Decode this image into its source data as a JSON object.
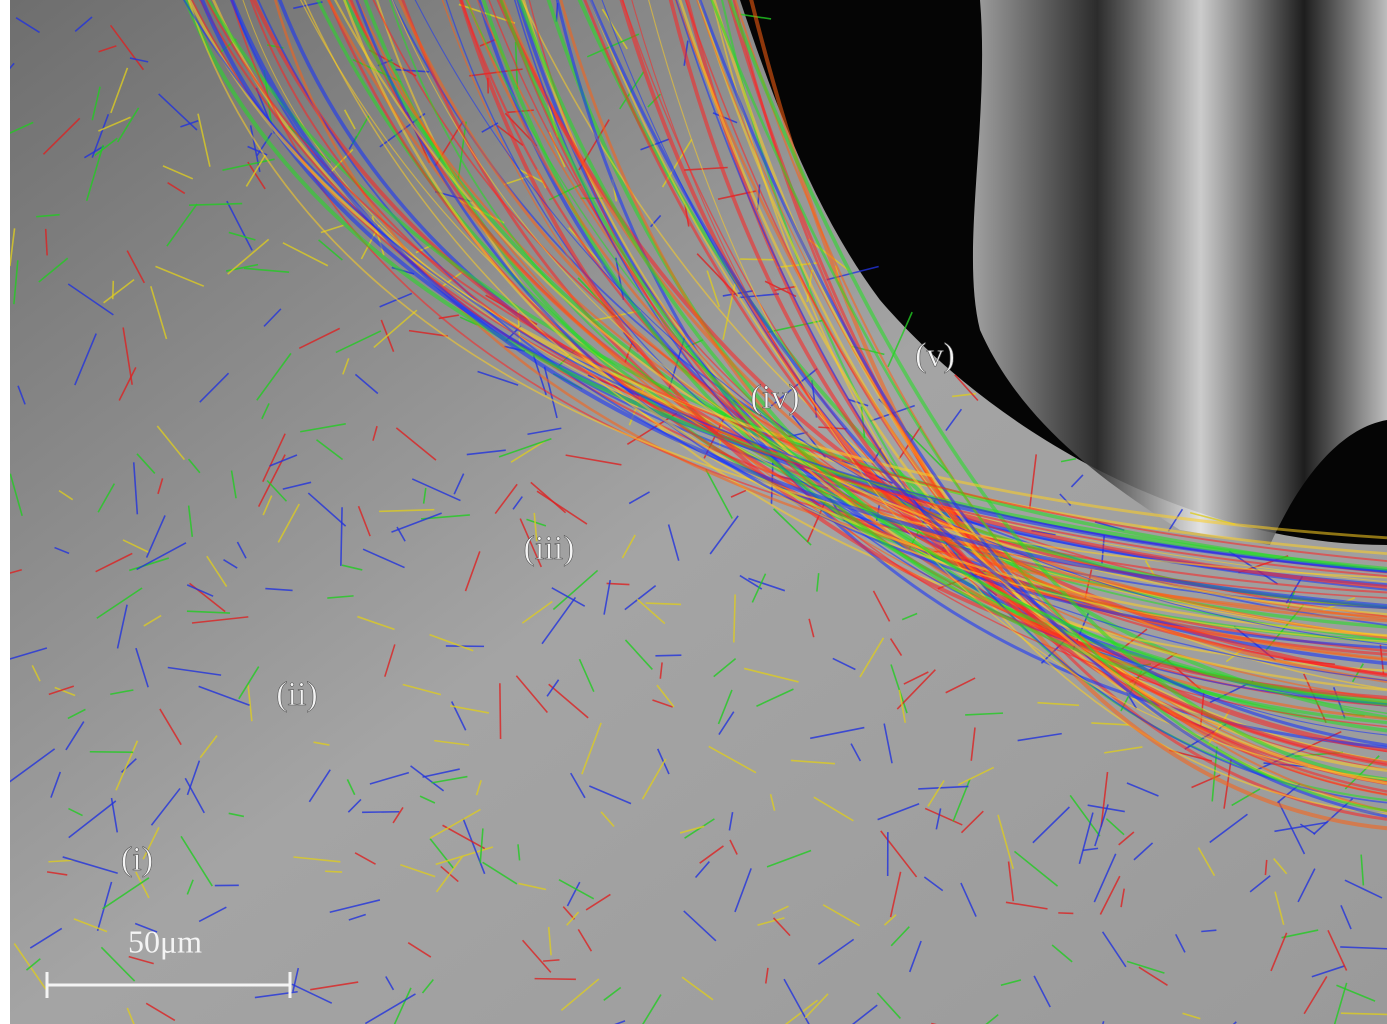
{
  "labels": [
    "(i)",
    "(ii)",
    "(iii)",
    "(iv)",
    "(v)"
  ],
  "scale_bar": {
    "label": "50μm"
  }
}
